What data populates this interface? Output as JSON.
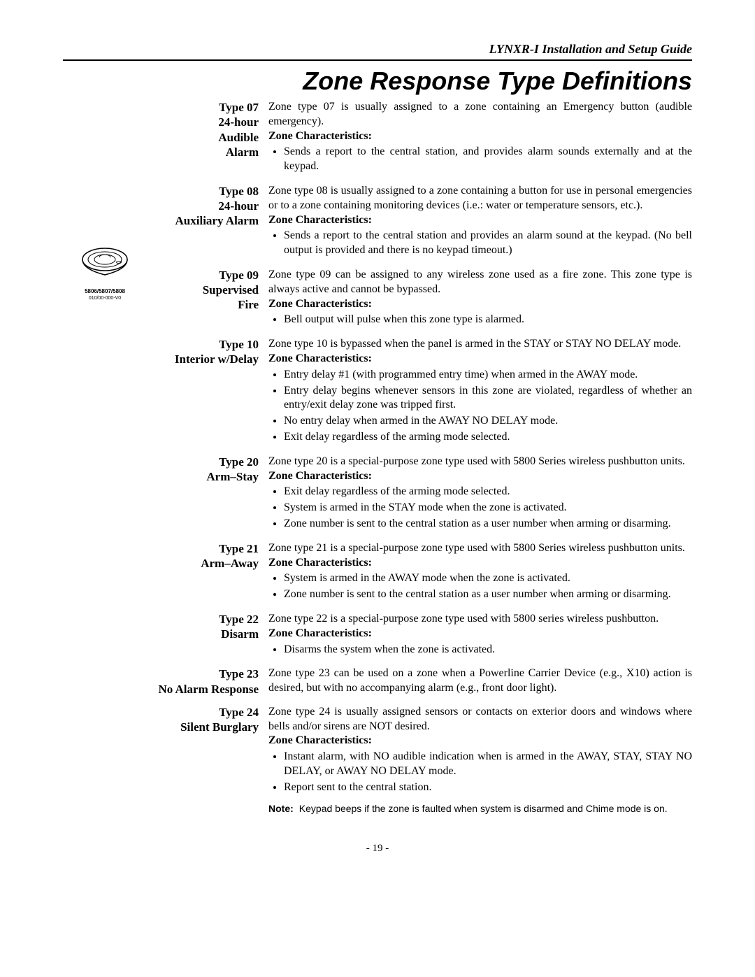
{
  "header": "LYNXR-I Installation and Setup Guide",
  "title": "Zone Response Type Definitions",
  "marginIcon": {
    "caption": "5806/5807/5808",
    "sub": "010/00-000-V0"
  },
  "sections": [
    {
      "labelLines": [
        "Type 07",
        "24-hour",
        "Audible",
        "Alarm"
      ],
      "intro": "Zone type 07 is usually assigned to a zone containing an Emergency button (audible emergency).",
      "zcLabel": "Zone Characteristics:",
      "bullets": [
        "Sends a report to the central station, and provides alarm sounds externally and at the keypad."
      ]
    },
    {
      "labelLines": [
        "Type 08",
        "24-hour",
        "Auxiliary Alarm"
      ],
      "intro": "Zone type 08 is usually assigned to a zone containing a button for use in personal emergencies or to a zone containing monitoring devices (i.e.: water or temperature sensors, etc.).",
      "zcLabel": "Zone Characteristics:",
      "bullets": [
        "Sends a report to the central station and provides an alarm sound at the keypad. (No bell output is provided and there is no keypad timeout.)"
      ]
    },
    {
      "labelLines": [
        "Type 09",
        "Supervised",
        "Fire"
      ],
      "intro": "Zone type 09 can be assigned to any wireless zone used as a fire zone. This zone type is always active and cannot be bypassed.",
      "zcLabel": "Zone Characteristics:",
      "bullets": [
        "Bell output will pulse when this zone type is alarmed."
      ]
    },
    {
      "labelLines": [
        "Type 10",
        "Interior w/Delay"
      ],
      "intro": "Zone type 10 is bypassed when the panel is armed in the STAY or STAY NO DELAY mode.",
      "zcLabel": "Zone Characteristics:",
      "bullets": [
        "Entry delay #1 (with programmed entry time) when armed in the AWAY mode.",
        "Entry delay begins whenever sensors in this zone are violated, regardless of whether an entry/exit delay zone was tripped first.",
        "No entry delay when armed in the AWAY NO DELAY mode.",
        "Exit delay regardless of the arming mode selected."
      ]
    },
    {
      "labelLines": [
        "Type 20",
        "Arm–Stay"
      ],
      "intro": "Zone type 20 is a special-purpose zone type used with 5800 Series wireless pushbutton units.",
      "zcLabel": "Zone Characteristics:",
      "bullets": [
        "Exit delay regardless of the arming mode selected.",
        "System is armed in the STAY mode when the zone is activated.",
        "Zone number is sent to the central station as a user number when arming or disarming."
      ]
    },
    {
      "labelLines": [
        "Type 21",
        "Arm–Away"
      ],
      "intro": "Zone type 21 is a special-purpose zone type used with 5800 Series wireless pushbutton units.",
      "zcLabel": "Zone Characteristics:",
      "bullets": [
        "System is armed in the AWAY mode when the zone is activated.",
        "Zone number is sent to the central station as a user number when arming or disarming."
      ]
    },
    {
      "labelLines": [
        "Type 22",
        "Disarm"
      ],
      "intro": "Zone type 22 is a special-purpose zone type used with 5800 series wireless pushbutton.",
      "zcLabel": "Zone Characteristics:",
      "bullets": [
        "Disarms the system when the zone is activated."
      ]
    },
    {
      "labelLines": [
        "Type 23",
        "No Alarm Response"
      ],
      "intro": "Zone type 23 can be used on a zone when a Powerline Carrier Device (e.g., X10) action is desired, but with no accompanying alarm (e.g., front door light).",
      "zcLabel": "",
      "bullets": []
    },
    {
      "labelLines": [
        "Type 24",
        "Silent Burglary"
      ],
      "intro": "Zone type 24 is usually assigned sensors or contacts on exterior doors and windows where bells and/or sirens are NOT desired.",
      "zcLabel": "Zone Characteristics:",
      "bullets": [
        "Instant alarm, with NO audible indication when is armed in the AWAY, STAY, STAY NO DELAY, or AWAY NO DELAY mode.",
        "Report sent to the central station."
      ],
      "note": {
        "label": "Note:",
        "text": "Keypad beeps if the zone is faulted when system is disarmed and Chime mode is on."
      }
    }
  ],
  "pageNumber": "- 19 -"
}
